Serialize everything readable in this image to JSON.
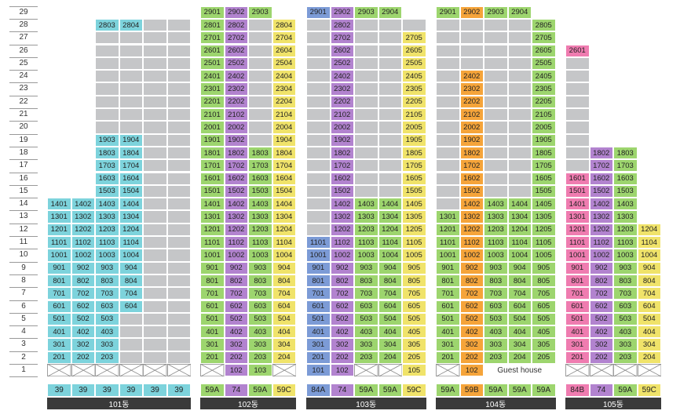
{
  "chart_data": {
    "type": "table",
    "floors": [
      "1",
      "2",
      "3",
      "4",
      "5",
      "6",
      "7",
      "8",
      "9",
      "10",
      "11",
      "12",
      "13",
      "14",
      "15",
      "16",
      "17",
      "18",
      "19",
      "20",
      "21",
      "22",
      "23",
      "24",
      "25",
      "26",
      "27",
      "28",
      "29"
    ],
    "colors": {
      "39": "#7dd3dc",
      "59A": "#9dd56e",
      "59B": "#f5a43a",
      "59C": "#f0e36a",
      "74": "#b283cf",
      "84A": "#7c9bd6",
      "84B": "#ef7cb0",
      "vacant": "#c5c6c8",
      "none": "#ffffff"
    },
    "buildings": [
      {
        "name": "101동",
        "lines": [
          {
            "type": "39",
            "label": "39",
            "top": 14,
            "start": 2,
            "grey_top": 14,
            "pos": "01"
          },
          {
            "type": "39",
            "label": "39",
            "top": 14,
            "start": 2,
            "grey_top": 14,
            "pos": "02"
          },
          {
            "type": "39",
            "label": "39",
            "top": 28,
            "start": 2,
            "grey_top": 28,
            "pos": "03",
            "vacant": [
              20,
              21,
              22,
              23,
              24,
              25,
              26,
              27
            ]
          },
          {
            "type": "39",
            "label": "39",
            "top": 28,
            "start": 6,
            "grey_top": 28,
            "pos": "04",
            "vacant": [
              2,
              3,
              4,
              5,
              20,
              21,
              22,
              23,
              24,
              25,
              26,
              27
            ]
          },
          {
            "type": "39",
            "label": "39",
            "top": 0,
            "start": 0,
            "grey_top": 28,
            "pos": "05"
          },
          {
            "type": "39",
            "label": "39",
            "top": 0,
            "start": 0,
            "grey_top": 28,
            "pos": "06"
          }
        ],
        "ground": [
          "x",
          "x",
          "x",
          "x",
          "x",
          "x"
        ]
      },
      {
        "name": "102동",
        "lines": [
          {
            "type": "59A",
            "label": "59A",
            "top": 29,
            "start": 2,
            "grey_top": 29,
            "pos": "01"
          },
          {
            "type": "74",
            "label": "74",
            "top": 29,
            "start": 2,
            "grey_top": 29,
            "pos": "02"
          },
          {
            "type": "59A",
            "label": "59A",
            "top": 29,
            "start": 2,
            "grey_top": 29,
            "pos": "03",
            "vacant": [
              19,
              20,
              21,
              22,
              23,
              24,
              25,
              26,
              27,
              28
            ]
          },
          {
            "type": "59C",
            "label": "59C",
            "top": 28,
            "start": 2,
            "grey_top": 28,
            "pos": "04"
          }
        ],
        "ground": [
          "x",
          "102",
          "103",
          "x"
        ]
      },
      {
        "name": "103동",
        "lines": [
          {
            "type": "84A",
            "label": "84A",
            "top": 29,
            "start": 2,
            "grey_top": 29,
            "pos": "01",
            "vacant": [
              12,
              13,
              14,
              15,
              16,
              17,
              18,
              19,
              20,
              21,
              22,
              23,
              24,
              25,
              26,
              27,
              28
            ]
          },
          {
            "type": "74",
            "label": "74",
            "top": 29,
            "start": 2,
            "grey_top": 29,
            "pos": "02"
          },
          {
            "type": "59A",
            "label": "59A",
            "top": 29,
            "start": 2,
            "grey_top": 29,
            "pos": "03",
            "vacant": [
              15,
              16,
              17,
              18,
              19,
              20,
              21,
              22,
              23,
              24,
              25,
              26,
              27,
              28
            ]
          },
          {
            "type": "59A",
            "label": "59A",
            "top": 29,
            "start": 2,
            "grey_top": 29,
            "pos": "04",
            "vacant": [
              15,
              16,
              17,
              18,
              19,
              20,
              21,
              22,
              23,
              24,
              25,
              26,
              27,
              28
            ]
          },
          {
            "type": "59C",
            "label": "59C",
            "top": 27,
            "start": 2,
            "grey_top": 28,
            "pos": "05"
          }
        ],
        "ground": [
          "101",
          "102",
          "x",
          "x",
          "105"
        ]
      },
      {
        "name": "104동",
        "lines": [
          {
            "type": "59A",
            "label": "59A",
            "top": 29,
            "start": 2,
            "grey_top": 29,
            "pos": "01",
            "vacant": [
              14,
              15,
              16,
              17,
              18,
              19,
              20,
              21,
              22,
              23,
              24,
              25,
              26,
              27,
              28
            ]
          },
          {
            "type": "59B",
            "label": "59B",
            "top": 29,
            "start": 2,
            "grey_top": 29,
            "pos": "02",
            "vacant": [
              25,
              26,
              27,
              28
            ]
          },
          {
            "type": "59A",
            "label": "59A",
            "top": 29,
            "start": 2,
            "grey_top": 29,
            "pos": "03",
            "vacant": [
              15,
              16,
              17,
              18,
              19,
              20,
              21,
              22,
              23,
              24,
              25,
              26,
              27,
              28
            ]
          },
          {
            "type": "59A",
            "label": "59A",
            "top": 29,
            "start": 2,
            "grey_top": 29,
            "pos": "04",
            "vacant": [
              15,
              16,
              17,
              18,
              19,
              20,
              21,
              22,
              23,
              24,
              25,
              26,
              27,
              28
            ]
          },
          {
            "type": "59A",
            "label": "59A",
            "top": 28,
            "start": 2,
            "grey_top": 28,
            "pos": "05"
          }
        ],
        "ground": [
          "x",
          "102",
          "gh",
          "gh",
          "gh"
        ],
        "ground_note": "Guest house"
      },
      {
        "name": "105동",
        "lines": [
          {
            "type": "84B",
            "label": "84B",
            "top": 26,
            "start": 2,
            "grey_top": 26,
            "pos": "01",
            "vacant": [
              17,
              18,
              19,
              20,
              21,
              22,
              23,
              24,
              25
            ]
          },
          {
            "type": "74",
            "label": "74",
            "top": 18,
            "start": 2,
            "grey_top": 18,
            "pos": "02"
          },
          {
            "type": "59A",
            "label": "59A",
            "top": 18,
            "start": 2,
            "grey_top": 18,
            "pos": "03"
          },
          {
            "type": "59C",
            "label": "59C",
            "top": 12,
            "start": 2,
            "grey_top": 12,
            "pos": "04"
          }
        ],
        "ground": [
          "x",
          "x",
          "x",
          "x"
        ]
      }
    ]
  }
}
